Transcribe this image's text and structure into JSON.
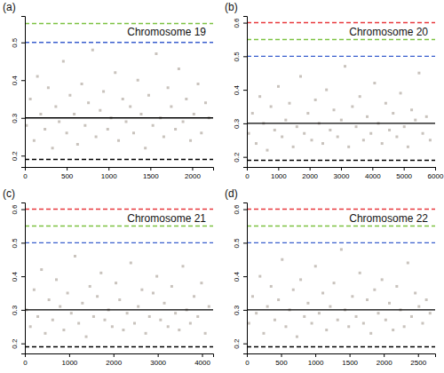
{
  "chart_data": [
    {
      "type": "scatter",
      "title": "Chromosome 19",
      "annotations": [
        "(a)"
      ],
      "xlim": [
        0,
        2250
      ],
      "xticks": [
        0,
        500,
        1000,
        1500,
        2000
      ],
      "ylim": [
        0.17,
        0.57
      ],
      "yticks": [
        0.2,
        0.3,
        0.4,
        0.5
      ],
      "series": [
        {
          "type": "scatter",
          "color": "#c9c3bd",
          "marker": "square",
          "x": [
            20,
            65,
            110,
            150,
            190,
            240,
            280,
            330,
            370,
            410,
            460,
            500,
            540,
            590,
            630,
            680,
            720,
            760,
            810,
            850,
            900,
            940,
            990,
            1030,
            1080,
            1120,
            1170,
            1210,
            1260,
            1300,
            1350,
            1390,
            1440,
            1480,
            1530,
            1570,
            1620,
            1660,
            1710,
            1750,
            1800,
            1840,
            1890,
            1930,
            1980,
            2020,
            2070,
            2110,
            2160,
            2200
          ],
          "values": [
            0.28,
            0.35,
            0.24,
            0.41,
            0.31,
            0.27,
            0.38,
            0.22,
            0.33,
            0.29,
            0.45,
            0.26,
            0.36,
            0.31,
            0.23,
            0.39,
            0.28,
            0.34,
            0.48,
            0.25,
            0.32,
            0.37,
            0.27,
            0.3,
            0.42,
            0.24,
            0.35,
            0.29,
            0.33,
            0.26,
            0.4,
            0.31,
            0.22,
            0.36,
            0.28,
            0.47,
            0.3,
            0.25,
            0.38,
            0.33,
            0.27,
            0.43,
            0.29,
            0.35,
            0.24,
            0.31,
            0.39,
            0.26,
            0.34,
            0.3
          ]
        },
        {
          "type": "hline",
          "color": "#7dc242",
          "line_style": "dashed",
          "values": [
            0.55
          ]
        },
        {
          "type": "hline",
          "color": "#3a5fcd",
          "line_style": "dashed",
          "values": [
            0.5
          ]
        },
        {
          "type": "hline",
          "color": "#000000",
          "line_style": "solid",
          "values": [
            0.3
          ]
        },
        {
          "type": "hline",
          "color": "#000000",
          "line_style": "dashed",
          "values": [
            0.19
          ]
        }
      ]
    },
    {
      "type": "scatter",
      "title": "Chromosome 20",
      "annotations": [
        "(b)"
      ],
      "xlim": [
        0,
        6000
      ],
      "xticks": [
        0,
        1000,
        2000,
        3000,
        4000,
        5000,
        6000
      ],
      "ylim": [
        0.17,
        0.62
      ],
      "yticks": [
        0.2,
        0.3,
        0.4,
        0.5,
        0.6
      ],
      "series": [
        {
          "type": "scatter",
          "color": "#c9c3bd",
          "marker": "square",
          "x": [
            60,
            178,
            296,
            414,
            532,
            650,
            768,
            886,
            1004,
            1122,
            1240,
            1358,
            1476,
            1594,
            1712,
            1830,
            1948,
            2066,
            2184,
            2302,
            2420,
            2538,
            2656,
            2774,
            2892,
            3010,
            3128,
            3246,
            3364,
            3482,
            3600,
            3718,
            3836,
            3954,
            4072,
            4190,
            4308,
            4426,
            4544,
            4662,
            4780,
            4898,
            5016,
            5134,
            5252,
            5370,
            5488,
            5606,
            5724,
            5842
          ],
          "values": [
            0.27,
            0.33,
            0.24,
            0.38,
            0.3,
            0.22,
            0.35,
            0.28,
            0.41,
            0.26,
            0.31,
            0.36,
            0.23,
            0.29,
            0.44,
            0.27,
            0.33,
            0.25,
            0.37,
            0.3,
            0.24,
            0.4,
            0.28,
            0.34,
            0.26,
            0.31,
            0.47,
            0.23,
            0.35,
            0.29,
            0.38,
            0.25,
            0.32,
            0.27,
            0.42,
            0.3,
            0.24,
            0.36,
            0.28,
            0.33,
            0.26,
            0.39,
            0.29,
            0.23,
            0.34,
            0.31,
            0.45,
            0.27,
            0.32,
            0.25
          ]
        },
        {
          "type": "hline",
          "color": "#e8383d",
          "line_style": "dashed",
          "values": [
            0.6
          ]
        },
        {
          "type": "hline",
          "color": "#7dc242",
          "line_style": "dashed",
          "values": [
            0.55
          ]
        },
        {
          "type": "hline",
          "color": "#3a5fcd",
          "line_style": "dashed",
          "values": [
            0.5
          ]
        },
        {
          "type": "hline",
          "color": "#000000",
          "line_style": "solid",
          "values": [
            0.3
          ]
        },
        {
          "type": "hline",
          "color": "#000000",
          "line_style": "dashed",
          "values": [
            0.19
          ]
        }
      ]
    },
    {
      "type": "scatter",
      "title": "Chromosome 21",
      "annotations": [
        "(c)"
      ],
      "xlim": [
        0,
        4250
      ],
      "xticks": [
        0,
        1000,
        2000,
        3000,
        4000
      ],
      "ylim": [
        0.17,
        0.62
      ],
      "yticks": [
        0.2,
        0.3,
        0.4,
        0.5,
        0.6
      ],
      "series": [
        {
          "type": "scatter",
          "color": "#c9c3bd",
          "marker": "square",
          "x": [
            40,
            124,
            208,
            292,
            376,
            460,
            544,
            628,
            712,
            796,
            880,
            964,
            1048,
            1132,
            1216,
            1300,
            1384,
            1468,
            1552,
            1636,
            1720,
            1804,
            1888,
            1972,
            2056,
            2140,
            2224,
            2308,
            2392,
            2476,
            2560,
            2644,
            2728,
            2812,
            2896,
            2980,
            3064,
            3148,
            3232,
            3316,
            3400,
            3484,
            3568,
            3652,
            3736,
            3820,
            3904,
            3988,
            4072,
            4156
          ],
          "values": [
            0.3,
            0.25,
            0.36,
            0.28,
            0.42,
            0.23,
            0.33,
            0.27,
            0.39,
            0.31,
            0.24,
            0.35,
            0.29,
            0.46,
            0.26,
            0.32,
            0.22,
            0.37,
            0.28,
            0.34,
            0.41,
            0.27,
            0.3,
            0.25,
            0.38,
            0.33,
            0.24,
            0.29,
            0.44,
            0.26,
            0.31,
            0.36,
            0.23,
            0.28,
            0.35,
            0.4,
            0.27,
            0.32,
            0.25,
            0.37,
            0.29,
            0.24,
            0.43,
            0.3,
            0.26,
            0.34,
            0.28,
            0.38,
            0.23,
            0.31
          ]
        },
        {
          "type": "hline",
          "color": "#e8383d",
          "line_style": "dashed",
          "values": [
            0.6
          ]
        },
        {
          "type": "hline",
          "color": "#7dc242",
          "line_style": "dashed",
          "values": [
            0.55
          ]
        },
        {
          "type": "hline",
          "color": "#3a5fcd",
          "line_style": "dashed",
          "values": [
            0.5
          ]
        },
        {
          "type": "hline",
          "color": "#000000",
          "line_style": "solid",
          "values": [
            0.3
          ]
        },
        {
          "type": "hline",
          "color": "#000000",
          "line_style": "dashed",
          "values": [
            0.19
          ]
        }
      ]
    },
    {
      "type": "scatter",
      "title": "Chromosome 22",
      "annotations": [
        "(d)"
      ],
      "xlim": [
        0,
        2750
      ],
      "xticks": [
        0,
        500,
        1000,
        1500,
        2000,
        2500
      ],
      "ylim": [
        0.17,
        0.62
      ],
      "yticks": [
        0.2,
        0.3,
        0.4,
        0.5,
        0.6
      ],
      "series": [
        {
          "type": "scatter",
          "color": "#c9c3bd",
          "marker": "square",
          "x": [
            30,
            84,
            138,
            192,
            246,
            300,
            354,
            408,
            462,
            516,
            570,
            624,
            678,
            732,
            786,
            840,
            894,
            948,
            1002,
            1056,
            1110,
            1164,
            1218,
            1272,
            1326,
            1380,
            1434,
            1488,
            1542,
            1596,
            1650,
            1704,
            1758,
            1812,
            1866,
            1920,
            1974,
            2028,
            2082,
            2136,
            2190,
            2244,
            2298,
            2352,
            2406,
            2460,
            2514,
            2568,
            2622,
            2676
          ],
          "values": [
            0.26,
            0.34,
            0.29,
            0.4,
            0.23,
            0.31,
            0.37,
            0.27,
            0.33,
            0.45,
            0.25,
            0.3,
            0.36,
            0.22,
            0.39,
            0.28,
            0.32,
            0.26,
            0.43,
            0.29,
            0.35,
            0.24,
            0.31,
            0.38,
            0.27,
            0.48,
            0.3,
            0.25,
            0.34,
            0.28,
            0.41,
            0.26,
            0.33,
            0.23,
            0.36,
            0.29,
            0.39,
            0.27,
            0.32,
            0.24,
            0.37,
            0.3,
            0.25,
            0.44,
            0.28,
            0.35,
            0.31,
            0.26,
            0.33,
            0.29
          ]
        },
        {
          "type": "hline",
          "color": "#e8383d",
          "line_style": "dashed",
          "values": [
            0.6
          ]
        },
        {
          "type": "hline",
          "color": "#7dc242",
          "line_style": "dashed",
          "values": [
            0.55
          ]
        },
        {
          "type": "hline",
          "color": "#3a5fcd",
          "line_style": "dashed",
          "values": [
            0.5
          ]
        },
        {
          "type": "hline",
          "color": "#000000",
          "line_style": "solid",
          "values": [
            0.3
          ]
        },
        {
          "type": "hline",
          "color": "#000000",
          "line_style": "dashed",
          "values": [
            0.19
          ]
        }
      ]
    }
  ]
}
